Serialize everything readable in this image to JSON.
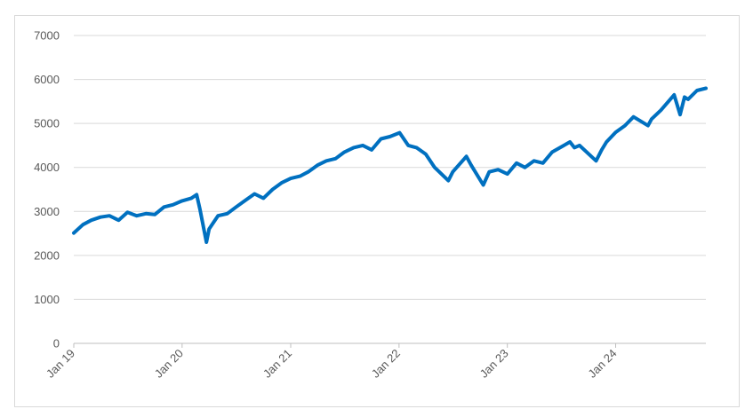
{
  "chart_data": {
    "type": "line",
    "title": "",
    "xlabel": "",
    "ylabel": "",
    "x_range": [
      "2019-01-01",
      "2024-10-31"
    ],
    "ylim": [
      0,
      7000
    ],
    "y_ticks": [
      "0",
      "1000",
      "2000",
      "3000",
      "4000",
      "5000",
      "6000",
      "7000"
    ],
    "x_tick_labels": [
      "Jan 19",
      "Jan 20",
      "Jan 21",
      "Jan 22",
      "Jan 23",
      "Jan 24"
    ],
    "x_tick_dates": [
      "2019-01-01",
      "2020-01-01",
      "2021-01-01",
      "2022-01-01",
      "2023-01-01",
      "2024-01-01"
    ],
    "grid": true,
    "legend": "none",
    "line_color": "#0070c0",
    "series": [
      {
        "x": [
          "2019-01-01",
          "2019-02-01",
          "2019-03-01",
          "2019-04-01",
          "2019-05-01",
          "2019-06-01",
          "2019-07-01",
          "2019-08-01",
          "2019-09-01",
          "2019-10-01",
          "2019-11-01",
          "2019-12-01",
          "2020-01-01",
          "2020-02-01",
          "2020-02-19",
          "2020-03-01",
          "2020-03-23",
          "2020-04-01",
          "2020-05-01",
          "2020-06-01",
          "2020-07-01",
          "2020-08-01",
          "2020-09-01",
          "2020-10-01",
          "2020-11-01",
          "2020-12-01",
          "2021-01-01",
          "2021-02-01",
          "2021-03-01",
          "2021-04-01",
          "2021-05-01",
          "2021-06-01",
          "2021-07-01",
          "2021-08-01",
          "2021-09-01",
          "2021-10-01",
          "2021-11-01",
          "2021-12-01",
          "2022-01-03",
          "2022-02-01",
          "2022-03-01",
          "2022-04-01",
          "2022-05-01",
          "2022-06-16",
          "2022-07-01",
          "2022-08-16",
          "2022-09-01",
          "2022-10-12",
          "2022-11-01",
          "2022-12-01",
          "2023-01-01",
          "2023-02-01",
          "2023-03-01",
          "2023-04-01",
          "2023-05-01",
          "2023-06-01",
          "2023-07-31",
          "2023-08-15",
          "2023-09-01",
          "2023-10-27",
          "2023-11-15",
          "2023-12-01",
          "2024-01-01",
          "2024-02-01",
          "2024-03-01",
          "2024-04-19",
          "2024-05-01",
          "2024-06-01",
          "2024-07-16",
          "2024-08-05",
          "2024-08-20",
          "2024-09-01",
          "2024-10-01",
          "2024-10-31"
        ],
        "values": [
          2510,
          2700,
          2800,
          2870,
          2900,
          2800,
          2980,
          2900,
          2950,
          2930,
          3100,
          3150,
          3240,
          3300,
          3380,
          3050,
          2300,
          2600,
          2900,
          2950,
          3100,
          3250,
          3400,
          3300,
          3500,
          3650,
          3750,
          3800,
          3900,
          4050,
          4150,
          4200,
          4350,
          4450,
          4500,
          4400,
          4650,
          4700,
          4790,
          4500,
          4450,
          4300,
          4000,
          3700,
          3900,
          4250,
          4050,
          3600,
          3900,
          3950,
          3850,
          4100,
          4000,
          4150,
          4100,
          4350,
          4580,
          4450,
          4500,
          4150,
          4400,
          4580,
          4800,
          4950,
          5150,
          4950,
          5100,
          5300,
          5650,
          5200,
          5600,
          5550,
          5750,
          5800
        ]
      }
    ]
  }
}
